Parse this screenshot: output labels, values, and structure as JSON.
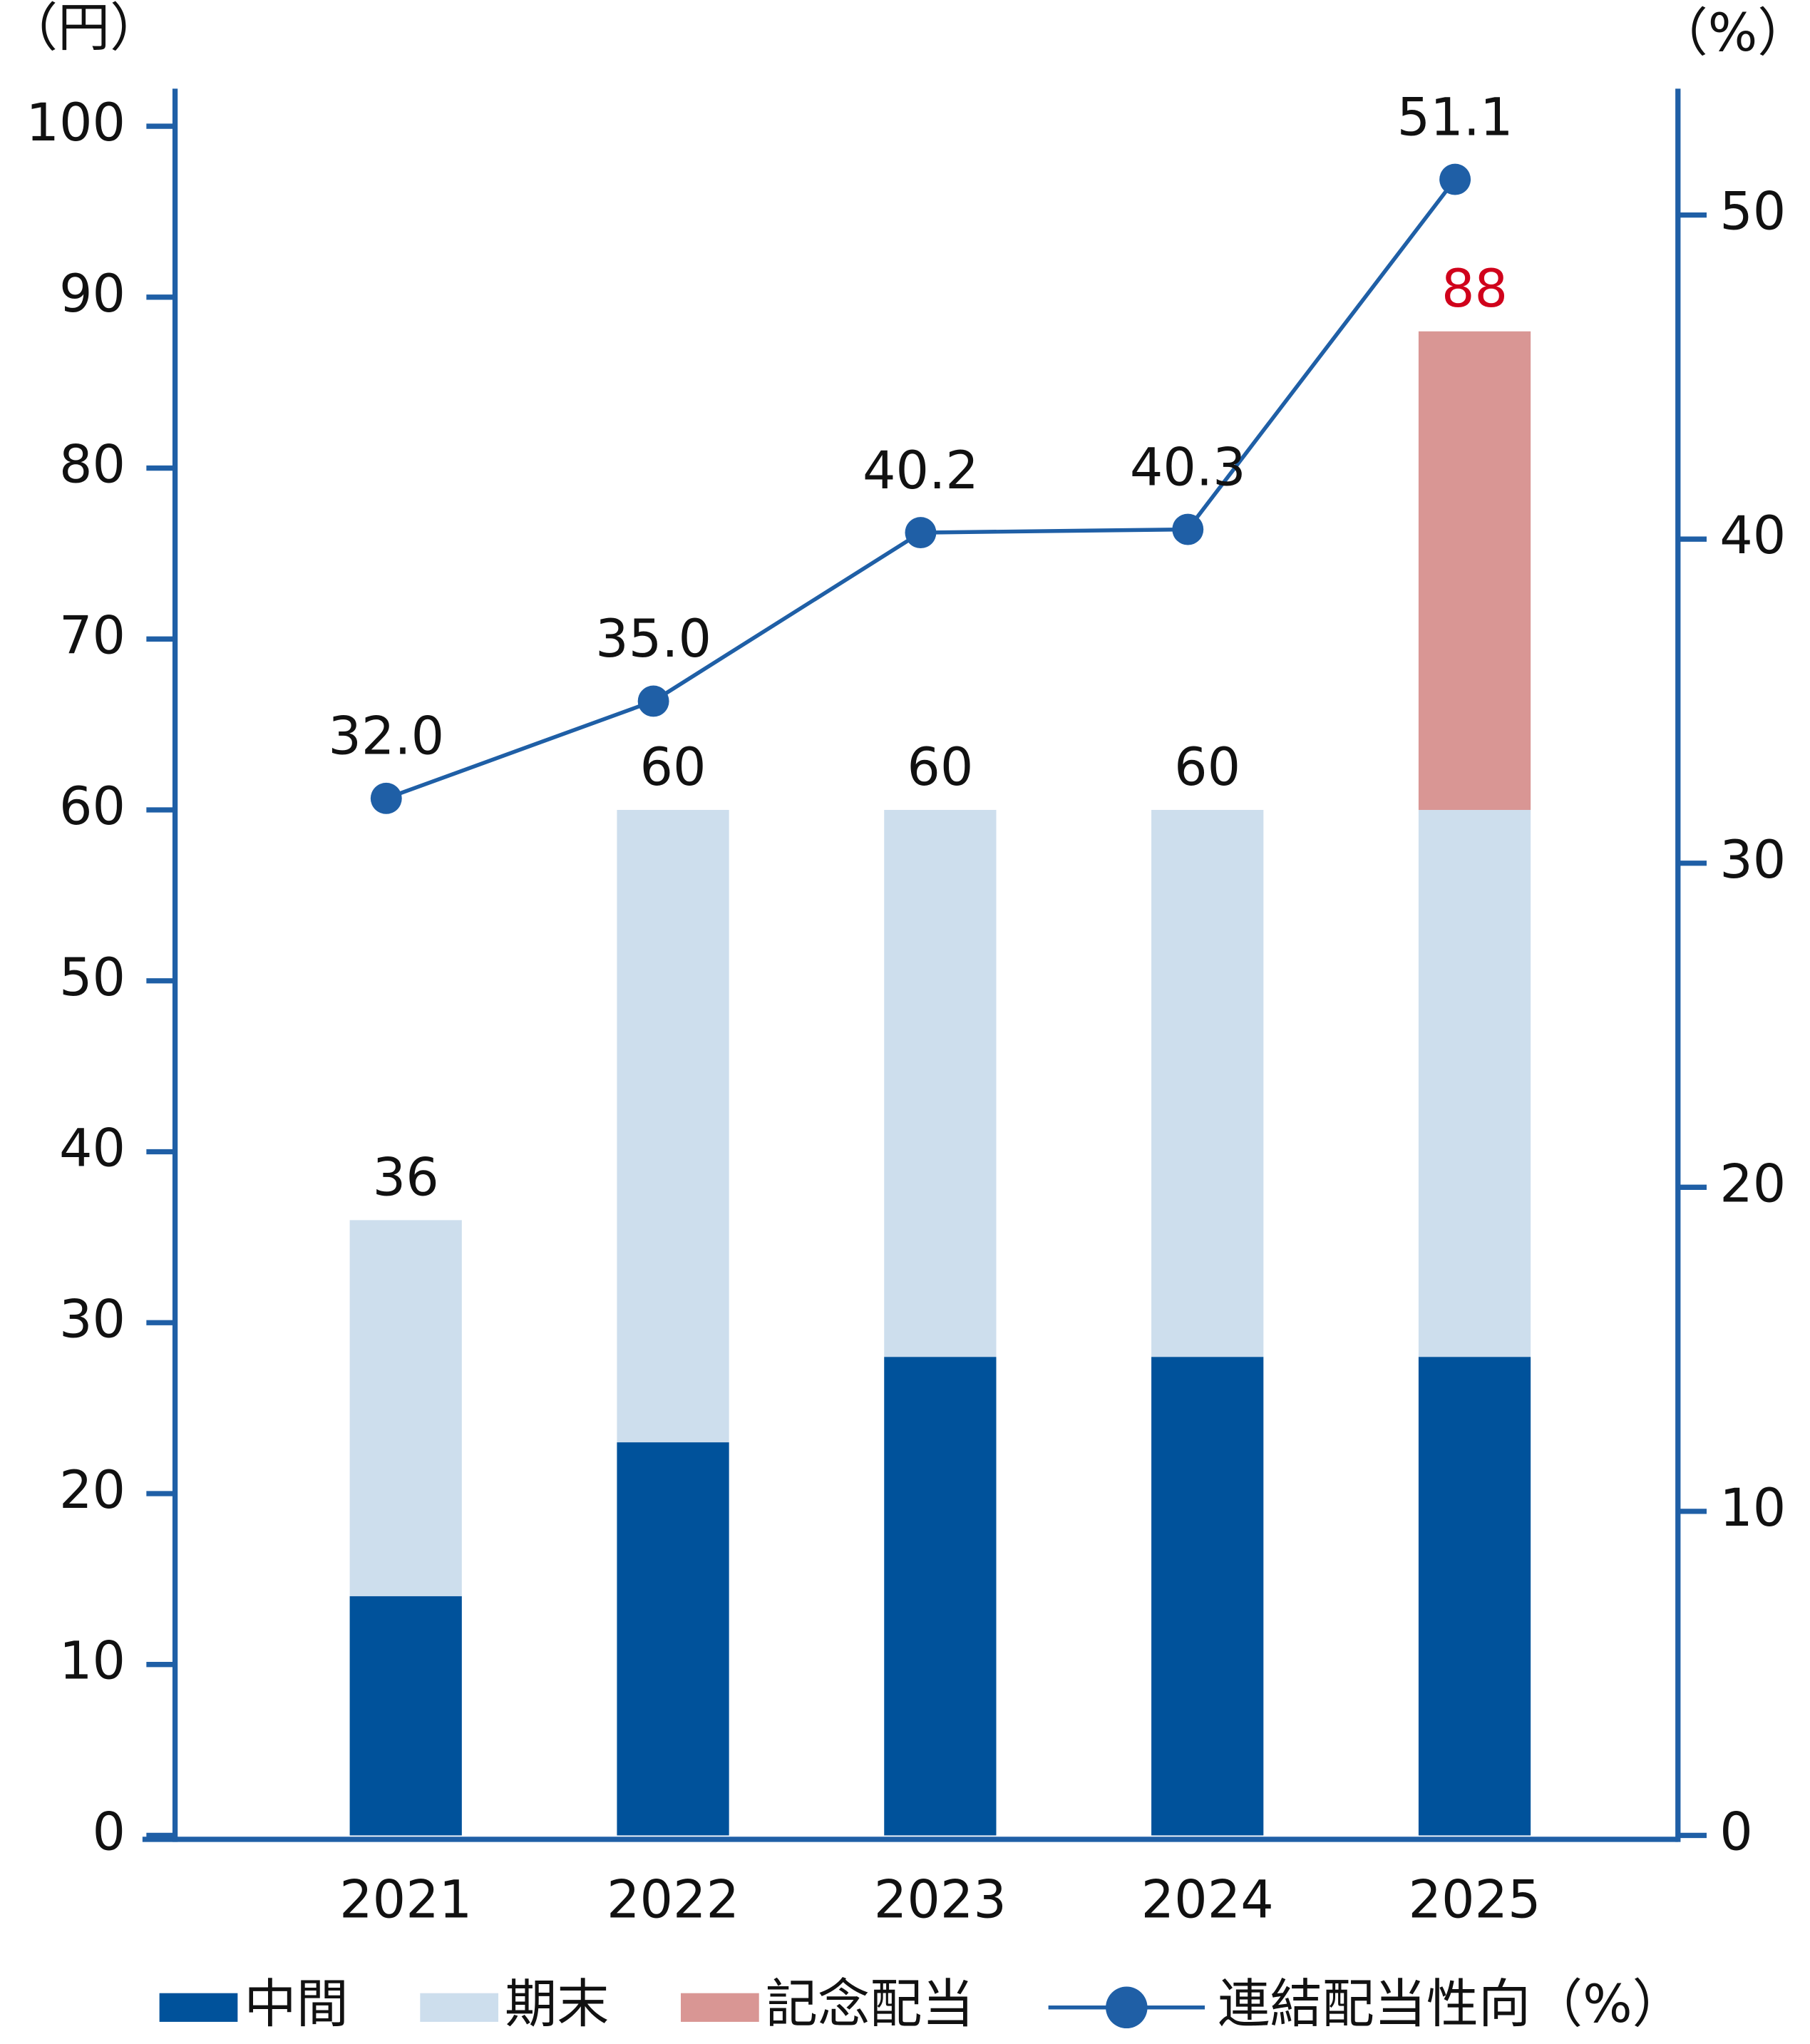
{
  "chart_data": {
    "type": "bar_line",
    "y_label": "（円）",
    "y2_label": "（%）",
    "categories": [
      "2021",
      "2022",
      "2023",
      "2024",
      "2025"
    ],
    "series": [
      {
        "name": "中間",
        "color": "#00529b",
        "values": [
          14,
          23,
          28,
          28,
          28
        ]
      },
      {
        "name": "期末",
        "color": "#cddeed",
        "values": [
          22,
          37,
          32,
          32,
          32
        ]
      },
      {
        "name": "記念配当",
        "color": "#d99694",
        "values": [
          null,
          null,
          null,
          null,
          28
        ]
      },
      {
        "name": "連結配当性向（%）",
        "color": "#1f5fa6",
        "axis": "y2",
        "type": "line",
        "values": [
          32.0,
          35.0,
          40.2,
          40.3,
          51.1
        ],
        "value_labels": [
          "32.0",
          "35.0",
          "40.2",
          "40.3",
          "51.1"
        ]
      }
    ],
    "totals": [
      36,
      60,
      60,
      60,
      88
    ],
    "total_colors": [
      "#111111",
      "#111111",
      "#111111",
      "#111111",
      "#d0021b"
    ],
    "ylim": [
      0,
      102.2
    ],
    "yticks": [
      0,
      10,
      20,
      30,
      40,
      50,
      60,
      70,
      80,
      90,
      100
    ],
    "y2lim": [
      0,
      53.9
    ],
    "y2ticks": [
      0,
      10,
      20,
      30,
      40,
      50
    ]
  }
}
